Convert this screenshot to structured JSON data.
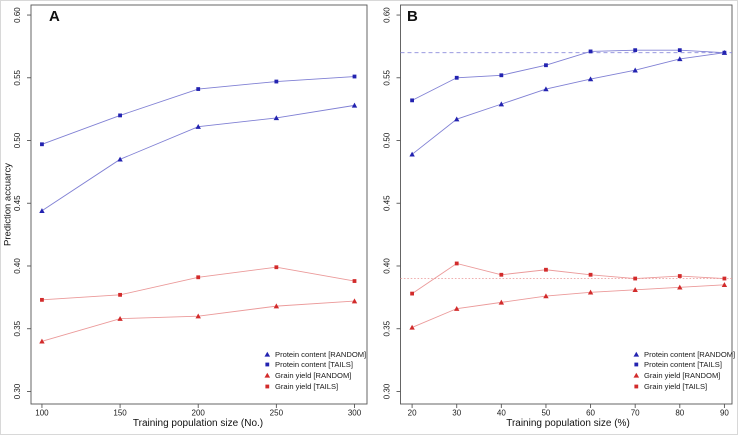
{
  "figure": {
    "ylabel": "Prediction accuarcy",
    "colors": {
      "protein_marker": "#2323b0",
      "protein_line": "#8080d4",
      "grain_marker": "#d22b2b",
      "grain_line": "#eb9a9a",
      "ref_blue": "#8c8cdc",
      "ref_red": "#eda4a4",
      "axis": "#555555",
      "tick_text": "#1a1a1a"
    },
    "legend": [
      {
        "label": "Protein content [RANDOM]",
        "marker": "triangle",
        "color": "#2323b0"
      },
      {
        "label": "Protein content [TAILS]",
        "marker": "square",
        "color": "#2323b0"
      },
      {
        "label": "Grain yield [RANDOM]",
        "marker": "triangle",
        "color": "#d22b2b"
      },
      {
        "label": "Grain yield [TAILS]",
        "marker": "square",
        "color": "#d22b2b"
      }
    ]
  },
  "chart_data": [
    {
      "type": "line",
      "panel": "A",
      "xlabel": "Training population size (No.)",
      "ylabel": "Prediction accuarcy",
      "xlim": [
        93,
        308
      ],
      "ylim": [
        0.29,
        0.608
      ],
      "xticks": [
        100,
        150,
        200,
        250,
        300
      ],
      "yticks": [
        0.3,
        0.35,
        0.4,
        0.45,
        0.5,
        0.55,
        0.6
      ],
      "ytick_labels": [
        "0.30",
        "0.35",
        "0.40",
        "0.45",
        "0.50",
        "0.55",
        "0.60"
      ],
      "grid": false,
      "legend_position": "bottom-right",
      "x": [
        100,
        150,
        200,
        250,
        300
      ],
      "series": [
        {
          "name": "Protein content [RANDOM]",
          "marker": "triangle",
          "marker_color": "#2323b0",
          "line_color": "#8080d4",
          "values": [
            0.444,
            0.485,
            0.511,
            0.518,
            0.528
          ]
        },
        {
          "name": "Protein content [TAILS]",
          "marker": "square",
          "marker_color": "#2323b0",
          "line_color": "#8080d4",
          "values": [
            0.497,
            0.52,
            0.541,
            0.547,
            0.551
          ]
        },
        {
          "name": "Grain yield [RANDOM]",
          "marker": "triangle",
          "marker_color": "#d22b2b",
          "line_color": "#eb9a9a",
          "values": [
            0.34,
            0.358,
            0.36,
            0.368,
            0.372
          ]
        },
        {
          "name": "Grain yield [TAILS]",
          "marker": "square",
          "marker_color": "#d22b2b",
          "line_color": "#eb9a9a",
          "values": [
            0.373,
            0.377,
            0.391,
            0.399,
            0.388
          ]
        }
      ],
      "ref_lines": []
    },
    {
      "type": "line",
      "panel": "B",
      "xlabel": "Training population size (%)",
      "ylabel": "Prediction accuarcy",
      "xlim": [
        17.4,
        91.7
      ],
      "ylim": [
        0.29,
        0.608
      ],
      "xticks": [
        20,
        30,
        40,
        50,
        60,
        70,
        80,
        90
      ],
      "yticks": [
        0.3,
        0.35,
        0.4,
        0.45,
        0.5,
        0.55,
        0.6
      ],
      "ytick_labels": [
        "0.30",
        "0.35",
        "0.40",
        "0.45",
        "0.50",
        "0.55",
        "0.60"
      ],
      "grid": false,
      "legend_position": "bottom-right",
      "x": [
        20,
        30,
        40,
        50,
        60,
        70,
        80,
        90
      ],
      "series": [
        {
          "name": "Protein content [RANDOM]",
          "marker": "triangle",
          "marker_color": "#2323b0",
          "line_color": "#8080d4",
          "values": [
            0.489,
            0.517,
            0.529,
            0.541,
            0.549,
            0.556,
            0.565,
            0.57
          ]
        },
        {
          "name": "Protein content [TAILS]",
          "marker": "square",
          "marker_color": "#2323b0",
          "line_color": "#8080d4",
          "values": [
            0.532,
            0.55,
            0.552,
            0.56,
            0.571,
            0.572,
            0.572,
            0.57
          ]
        },
        {
          "name": "Grain yield [RANDOM]",
          "marker": "triangle",
          "marker_color": "#d22b2b",
          "line_color": "#eb9a9a",
          "values": [
            0.351,
            0.366,
            0.371,
            0.376,
            0.379,
            0.381,
            0.383,
            0.385
          ]
        },
        {
          "name": "Grain yield [TAILS]",
          "marker": "square",
          "marker_color": "#d22b2b",
          "line_color": "#eb9a9a",
          "values": [
            0.378,
            0.402,
            0.393,
            0.397,
            0.393,
            0.39,
            0.392,
            0.39
          ]
        }
      ],
      "ref_lines": [
        {
          "y": 0.57,
          "color": "#8c8cdc",
          "style": "dashed"
        },
        {
          "y": 0.39,
          "color": "#eda4a4",
          "style": "dotted"
        }
      ]
    }
  ]
}
